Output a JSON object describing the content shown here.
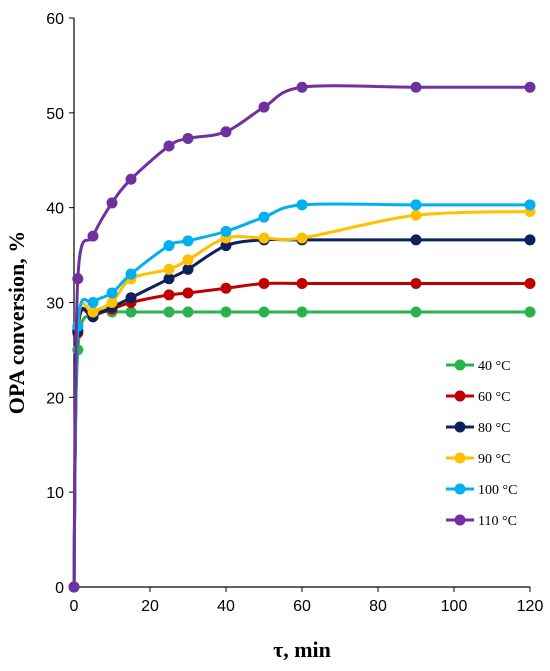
{
  "chart_data": {
    "type": "line",
    "title": "",
    "xlabel": "τ, min",
    "ylabel": "OPA conversion, %",
    "xlim": [
      0,
      120
    ],
    "ylim": [
      0,
      60
    ],
    "xticks": [
      0,
      20,
      40,
      60,
      80,
      100,
      120
    ],
    "yticks": [
      0,
      10,
      20,
      30,
      40,
      50,
      60
    ],
    "grid": false,
    "legend_position": "bottom-right",
    "series": [
      {
        "name": "40 °C",
        "color": "#2bb24c",
        "points": [
          [
            0,
            0
          ],
          [
            1,
            25.0
          ],
          [
            5,
            28.8
          ],
          [
            10,
            29.0
          ],
          [
            15,
            29.0
          ],
          [
            25,
            29.0
          ],
          [
            30,
            29.0
          ],
          [
            40,
            29.0
          ],
          [
            50,
            29.0
          ],
          [
            60,
            29.0
          ],
          [
            90,
            29.0
          ],
          [
            120,
            29.0
          ]
        ]
      },
      {
        "name": "60 °C",
        "color": "#c00000",
        "points": [
          [
            0,
            0
          ],
          [
            1,
            26.8
          ],
          [
            5,
            28.5
          ],
          [
            10,
            29.3
          ],
          [
            15,
            30.0
          ],
          [
            25,
            30.8
          ],
          [
            30,
            31.0
          ],
          [
            40,
            31.5
          ],
          [
            50,
            32.0
          ],
          [
            60,
            32.0
          ],
          [
            90,
            32.0
          ],
          [
            120,
            32.0
          ]
        ]
      },
      {
        "name": "80 °C",
        "color": "#0d1f5c",
        "points": [
          [
            0,
            0
          ],
          [
            1,
            27.0
          ],
          [
            5,
            28.5
          ],
          [
            10,
            29.5
          ],
          [
            15,
            30.5
          ],
          [
            25,
            32.5
          ],
          [
            30,
            33.5
          ],
          [
            40,
            36.0
          ],
          [
            50,
            36.6
          ],
          [
            60,
            36.6
          ],
          [
            90,
            36.6
          ],
          [
            120,
            36.6
          ]
        ]
      },
      {
        "name": "90 °C",
        "color": "#ffc000",
        "points": [
          [
            0,
            0
          ],
          [
            1,
            27.5
          ],
          [
            5,
            29.0
          ],
          [
            10,
            30.0
          ],
          [
            15,
            32.5
          ],
          [
            25,
            33.5
          ],
          [
            30,
            34.5
          ],
          [
            40,
            36.8
          ],
          [
            50,
            36.8
          ],
          [
            60,
            36.8
          ],
          [
            90,
            39.2
          ],
          [
            120,
            39.6
          ]
        ]
      },
      {
        "name": "100 °C",
        "color": "#00b0f0",
        "points": [
          [
            0,
            0
          ],
          [
            1,
            27.5
          ],
          [
            5,
            30.0
          ],
          [
            10,
            31.0
          ],
          [
            15,
            33.0
          ],
          [
            25,
            36.0
          ],
          [
            30,
            36.5
          ],
          [
            40,
            37.5
          ],
          [
            50,
            39.0
          ],
          [
            60,
            40.3
          ],
          [
            90,
            40.3
          ],
          [
            120,
            40.3
          ]
        ]
      },
      {
        "name": "110 °C",
        "color": "#7030a0",
        "points": [
          [
            0,
            0
          ],
          [
            1,
            32.5
          ],
          [
            5,
            37.0
          ],
          [
            10,
            40.5
          ],
          [
            15,
            43.0
          ],
          [
            25,
            46.5
          ],
          [
            30,
            47.3
          ],
          [
            40,
            48.0
          ],
          [
            50,
            50.6
          ],
          [
            60,
            52.7
          ],
          [
            90,
            52.7
          ],
          [
            120,
            52.7
          ]
        ]
      }
    ]
  }
}
